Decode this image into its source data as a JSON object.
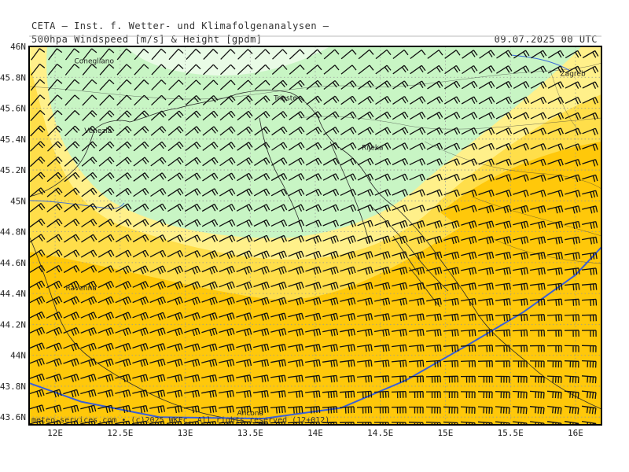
{
  "header": {
    "institute": "CETA — Inst. f. Wetter- und Klimafolgenanalysen —",
    "product": "500hpa Windspeed [m/s] & Height [gpdm]",
    "datetime": "09.07.2025 00 UTC"
  },
  "footer": {
    "copyright": "meteo-services.com • (c)2025 WKFc. All rights reserved (12+012)"
  },
  "axes": {
    "lat_labels": [
      "46N",
      "45.8N",
      "45.6N",
      "45.4N",
      "45.2N",
      "45N",
      "44.8N",
      "44.6N",
      "44.4N",
      "44.2N",
      "44N",
      "43.8N",
      "43.6N"
    ],
    "lat_values": [
      46,
      45.8,
      45.6,
      45.4,
      45.2,
      45,
      44.8,
      44.6,
      44.4,
      44.2,
      44,
      43.8,
      43.6
    ],
    "lon_labels": [
      "12E",
      "12.5E",
      "13E",
      "13.5E",
      "14E",
      "14.5E",
      "15E",
      "15.5E",
      "16E"
    ],
    "lon_values": [
      12,
      12.5,
      13,
      13.5,
      14,
      14.5,
      15,
      15.5,
      16
    ],
    "lon_range": [
      11.8,
      16.2
    ],
    "lat_range": [
      43.55,
      46
    ]
  },
  "cities": [
    {
      "name": "Conegliano",
      "lon": 12.3,
      "lat": 45.89
    },
    {
      "name": "Trieste",
      "lon": 13.77,
      "lat": 45.65
    },
    {
      "name": "Venezia",
      "lon": 12.33,
      "lat": 45.44
    },
    {
      "name": "Rijeka",
      "lon": 14.44,
      "lat": 45.33
    },
    {
      "name": "Zagreb",
      "lon": 15.98,
      "lat": 45.81
    },
    {
      "name": "Ravenna",
      "lon": 12.2,
      "lat": 44.42
    },
    {
      "name": "Ancona",
      "lon": 13.5,
      "lat": 43.61
    }
  ],
  "colors": {
    "band_lightest": "#e9fbe6",
    "band_light_green": "#c8f5c4",
    "band_pale_yellow": "#fff08a",
    "band_yellow": "#ffde4a",
    "band_gold": "#ffc80a",
    "band_orange": "#ffaa0a",
    "band_dark_orange": "#ff8c1a",
    "band_red_orange": "#ff6a1a",
    "height_contour": "#3a5fd8",
    "grid": "#9a9a9a"
  },
  "height_contour": {
    "label": "",
    "path_lonlat": [
      [
        11.8,
        43.82
      ],
      [
        12.2,
        43.7
      ],
      [
        12.8,
        43.6
      ],
      [
        13.6,
        43.59
      ],
      [
        14.2,
        43.66
      ],
      [
        14.7,
        43.84
      ],
      [
        15.2,
        44.08
      ],
      [
        15.6,
        44.28
      ],
      [
        16.0,
        44.52
      ],
      [
        16.2,
        44.7
      ]
    ]
  },
  "wind_barbs": {
    "direction": "westerly to south-westerly",
    "unit": "m/s"
  }
}
